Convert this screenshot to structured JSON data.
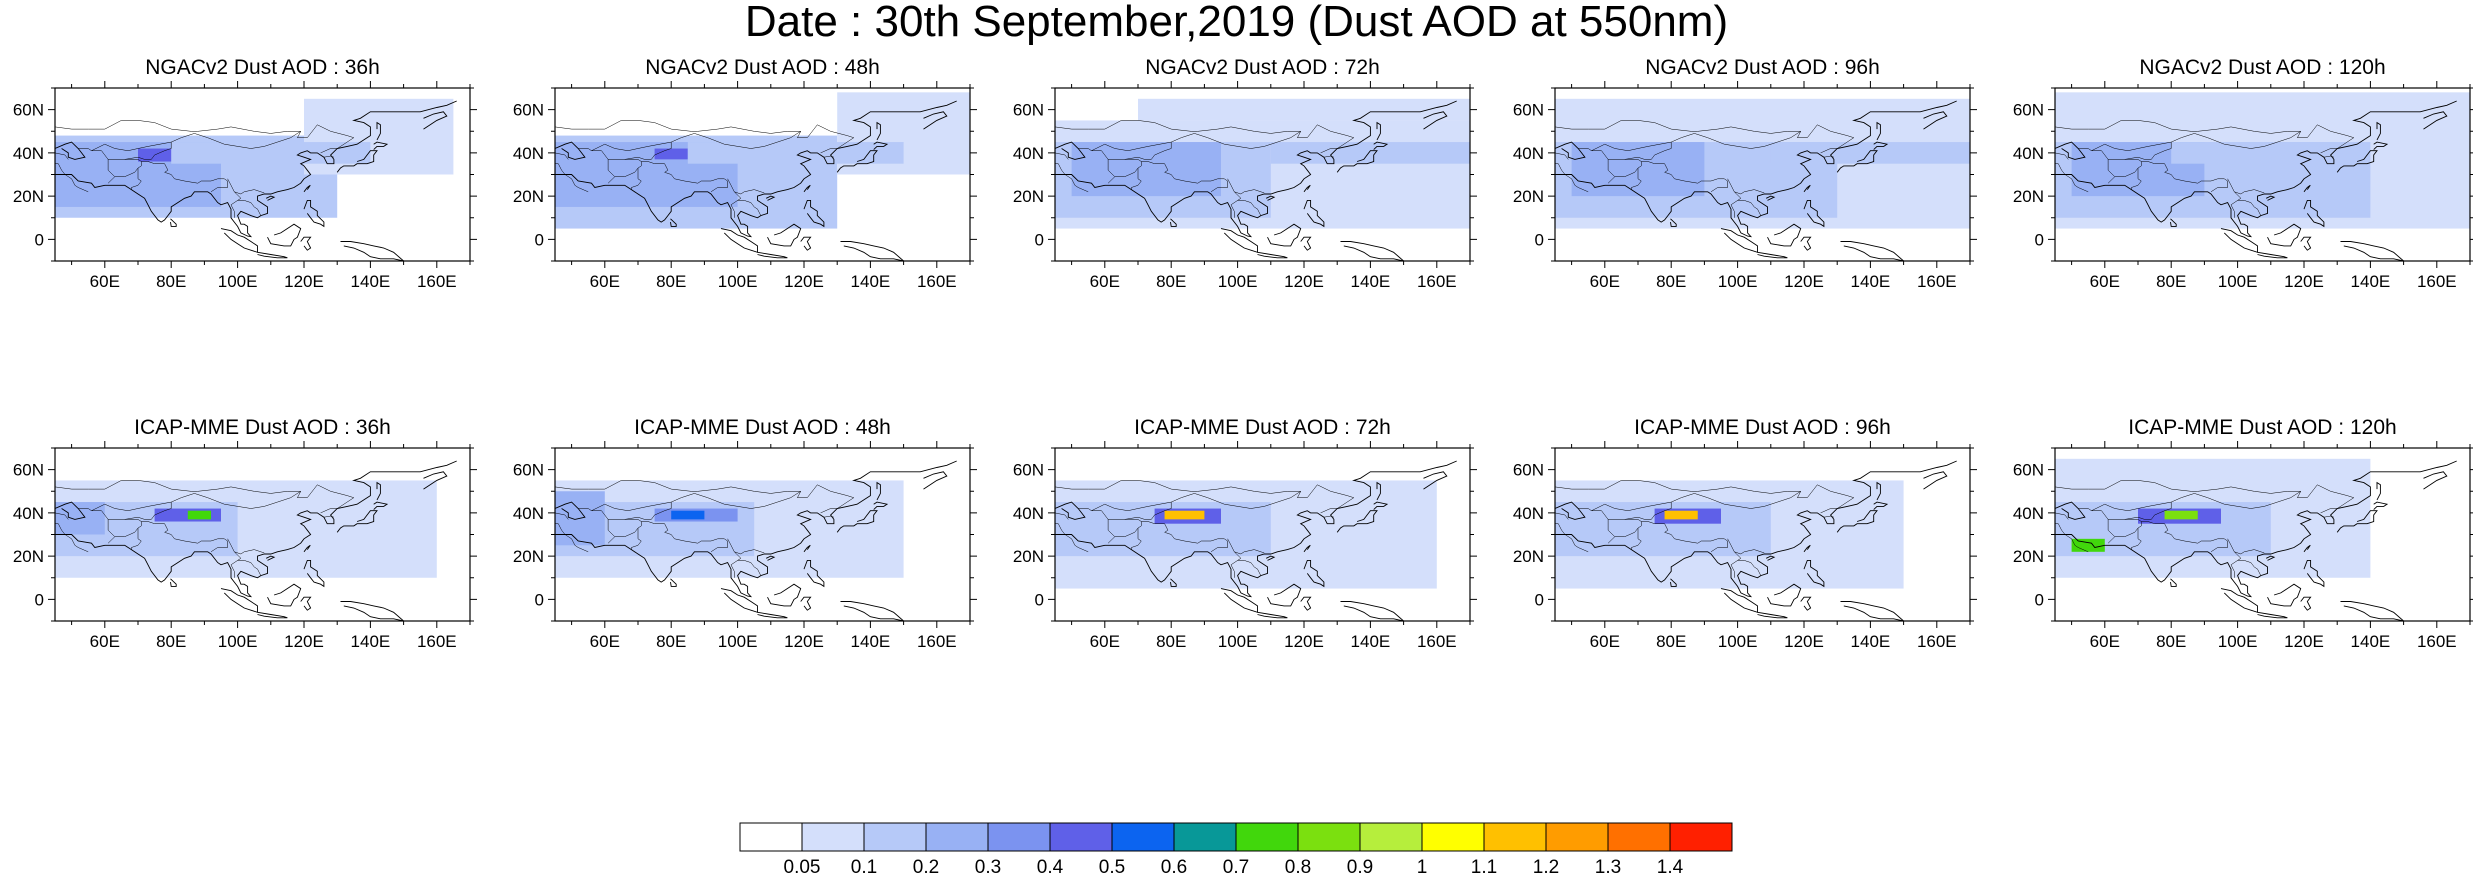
{
  "title": "Date : 30th September,2019 (Dust AOD at 550nm)",
  "colors": {
    "levels": [
      "#ffffff",
      "#d4dffb",
      "#b6c9f8",
      "#98b1f4",
      "#7b93f0",
      "#5f60e8",
      "#0c64f0",
      "#089898",
      "#41d70c",
      "#7be00f",
      "#b6ee3c",
      "#ffff00",
      "#ffc000",
      "#ff9c00",
      "#ff7000",
      "#ff2000"
    ],
    "coast": "#000000",
    "border": "#000000"
  },
  "x_ticks": [
    "60E",
    "80E",
    "100E",
    "120E",
    "140E",
    "160E"
  ],
  "y_ticks": [
    "60N",
    "40N",
    "20N",
    "0"
  ],
  "colorbar": {
    "labels": [
      "0.05",
      "0.1",
      "0.2",
      "0.3",
      "0.4",
      "0.5",
      "0.6",
      "0.7",
      "0.8",
      "0.9",
      "1",
      "1.1",
      "1.2",
      "1.3",
      "1.4"
    ]
  },
  "panels": [
    {
      "title": "NGACv2 Dust AOD : 36h",
      "model": "NGACv2",
      "lead": "36h",
      "dust": [
        {
          "lon": [
            45,
            130
          ],
          "lat": [
            10,
            48
          ],
          "level": 2
        },
        {
          "lon": [
            45,
            95
          ],
          "lat": [
            15,
            45
          ],
          "level": 3
        },
        {
          "lon": [
            70,
            85
          ],
          "lat": [
            36,
            42
          ],
          "level": 5
        },
        {
          "lon": [
            120,
            165
          ],
          "lat": [
            30,
            65
          ],
          "level": 1
        },
        {
          "lon": [
            80,
            140
          ],
          "lat": [
            35,
            45
          ],
          "level": 2
        }
      ]
    },
    {
      "title": "NGACv2 Dust AOD : 48h",
      "model": "NGACv2",
      "lead": "48h",
      "dust": [
        {
          "lon": [
            45,
            130
          ],
          "lat": [
            5,
            48
          ],
          "level": 2
        },
        {
          "lon": [
            45,
            100
          ],
          "lat": [
            15,
            45
          ],
          "level": 3
        },
        {
          "lon": [
            75,
            85
          ],
          "lat": [
            37,
            42
          ],
          "level": 5
        },
        {
          "lon": [
            130,
            170
          ],
          "lat": [
            30,
            68
          ],
          "level": 1
        },
        {
          "lon": [
            85,
            150
          ],
          "lat": [
            35,
            45
          ],
          "level": 2
        }
      ]
    },
    {
      "title": "NGACv2 Dust AOD : 72h",
      "model": "NGACv2",
      "lead": "72h",
      "dust": [
        {
          "lon": [
            45,
            170
          ],
          "lat": [
            5,
            55
          ],
          "level": 1
        },
        {
          "lon": [
            45,
            110
          ],
          "lat": [
            10,
            45
          ],
          "level": 2
        },
        {
          "lon": [
            50,
            95
          ],
          "lat": [
            20,
            45
          ],
          "level": 3
        },
        {
          "lon": [
            110,
            170
          ],
          "lat": [
            35,
            45
          ],
          "level": 2
        },
        {
          "lon": [
            70,
            170
          ],
          "lat": [
            55,
            65
          ],
          "level": 1
        }
      ]
    },
    {
      "title": "NGACv2 Dust AOD : 96h",
      "model": "NGACv2",
      "lead": "96h",
      "dust": [
        {
          "lon": [
            45,
            170
          ],
          "lat": [
            5,
            65
          ],
          "level": 1
        },
        {
          "lon": [
            45,
            130
          ],
          "lat": [
            10,
            45
          ],
          "level": 2
        },
        {
          "lon": [
            50,
            90
          ],
          "lat": [
            20,
            45
          ],
          "level": 3
        },
        {
          "lon": [
            110,
            170
          ],
          "lat": [
            35,
            45
          ],
          "level": 2
        }
      ]
    },
    {
      "title": "NGACv2 Dust AOD : 120h",
      "model": "NGACv2",
      "lead": "120h",
      "dust": [
        {
          "lon": [
            45,
            170
          ],
          "lat": [
            5,
            68
          ],
          "level": 1
        },
        {
          "lon": [
            45,
            140
          ],
          "lat": [
            10,
            45
          ],
          "level": 2
        },
        {
          "lon": [
            50,
            90
          ],
          "lat": [
            20,
            45
          ],
          "level": 3
        },
        {
          "lon": [
            80,
            130
          ],
          "lat": [
            35,
            45
          ],
          "level": 2
        }
      ]
    },
    {
      "title": "ICAP-MME Dust AOD : 36h",
      "model": "ICAP-MME",
      "lead": "36h",
      "dust": [
        {
          "lon": [
            45,
            160
          ],
          "lat": [
            10,
            55
          ],
          "level": 1
        },
        {
          "lon": [
            45,
            100
          ],
          "lat": [
            20,
            45
          ],
          "level": 2
        },
        {
          "lon": [
            75,
            95
          ],
          "lat": [
            36,
            42
          ],
          "level": 5
        },
        {
          "lon": [
            85,
            92
          ],
          "lat": [
            37,
            41
          ],
          "level": 8
        },
        {
          "lon": [
            45,
            60
          ],
          "lat": [
            30,
            45
          ],
          "level": 3
        }
      ]
    },
    {
      "title": "ICAP-MME Dust AOD : 48h",
      "model": "ICAP-MME",
      "lead": "48h",
      "dust": [
        {
          "lon": [
            45,
            150
          ],
          "lat": [
            10,
            55
          ],
          "level": 1
        },
        {
          "lon": [
            45,
            105
          ],
          "lat": [
            20,
            45
          ],
          "level": 2
        },
        {
          "lon": [
            75,
            100
          ],
          "lat": [
            36,
            42
          ],
          "level": 4
        },
        {
          "lon": [
            80,
            90
          ],
          "lat": [
            37,
            41
          ],
          "level": 6
        },
        {
          "lon": [
            45,
            60
          ],
          "lat": [
            25,
            50
          ],
          "level": 3
        }
      ]
    },
    {
      "title": "ICAP-MME Dust AOD : 72h",
      "model": "ICAP-MME",
      "lead": "72h",
      "dust": [
        {
          "lon": [
            45,
            160
          ],
          "lat": [
            5,
            55
          ],
          "level": 1
        },
        {
          "lon": [
            45,
            110
          ],
          "lat": [
            20,
            45
          ],
          "level": 2
        },
        {
          "lon": [
            75,
            95
          ],
          "lat": [
            35,
            42
          ],
          "level": 5
        },
        {
          "lon": [
            78,
            90
          ],
          "lat": [
            37,
            41
          ],
          "level": 12
        }
      ]
    },
    {
      "title": "ICAP-MME Dust AOD : 96h",
      "model": "ICAP-MME",
      "lead": "96h",
      "dust": [
        {
          "lon": [
            45,
            150
          ],
          "lat": [
            5,
            55
          ],
          "level": 1
        },
        {
          "lon": [
            45,
            110
          ],
          "lat": [
            20,
            45
          ],
          "level": 2
        },
        {
          "lon": [
            75,
            95
          ],
          "lat": [
            35,
            42
          ],
          "level": 5
        },
        {
          "lon": [
            78,
            88
          ],
          "lat": [
            37,
            41
          ],
          "level": 12
        }
      ]
    },
    {
      "title": "ICAP-MME Dust AOD : 120h",
      "model": "ICAP-MME",
      "lead": "120h",
      "dust": [
        {
          "lon": [
            45,
            140
          ],
          "lat": [
            10,
            65
          ],
          "level": 1
        },
        {
          "lon": [
            45,
            110
          ],
          "lat": [
            20,
            45
          ],
          "level": 2
        },
        {
          "lon": [
            70,
            95
          ],
          "lat": [
            35,
            42
          ],
          "level": 5
        },
        {
          "lon": [
            78,
            88
          ],
          "lat": [
            37,
            41
          ],
          "level": 9
        },
        {
          "lon": [
            50,
            60
          ],
          "lat": [
            22,
            28
          ],
          "level": 8
        }
      ]
    }
  ]
}
